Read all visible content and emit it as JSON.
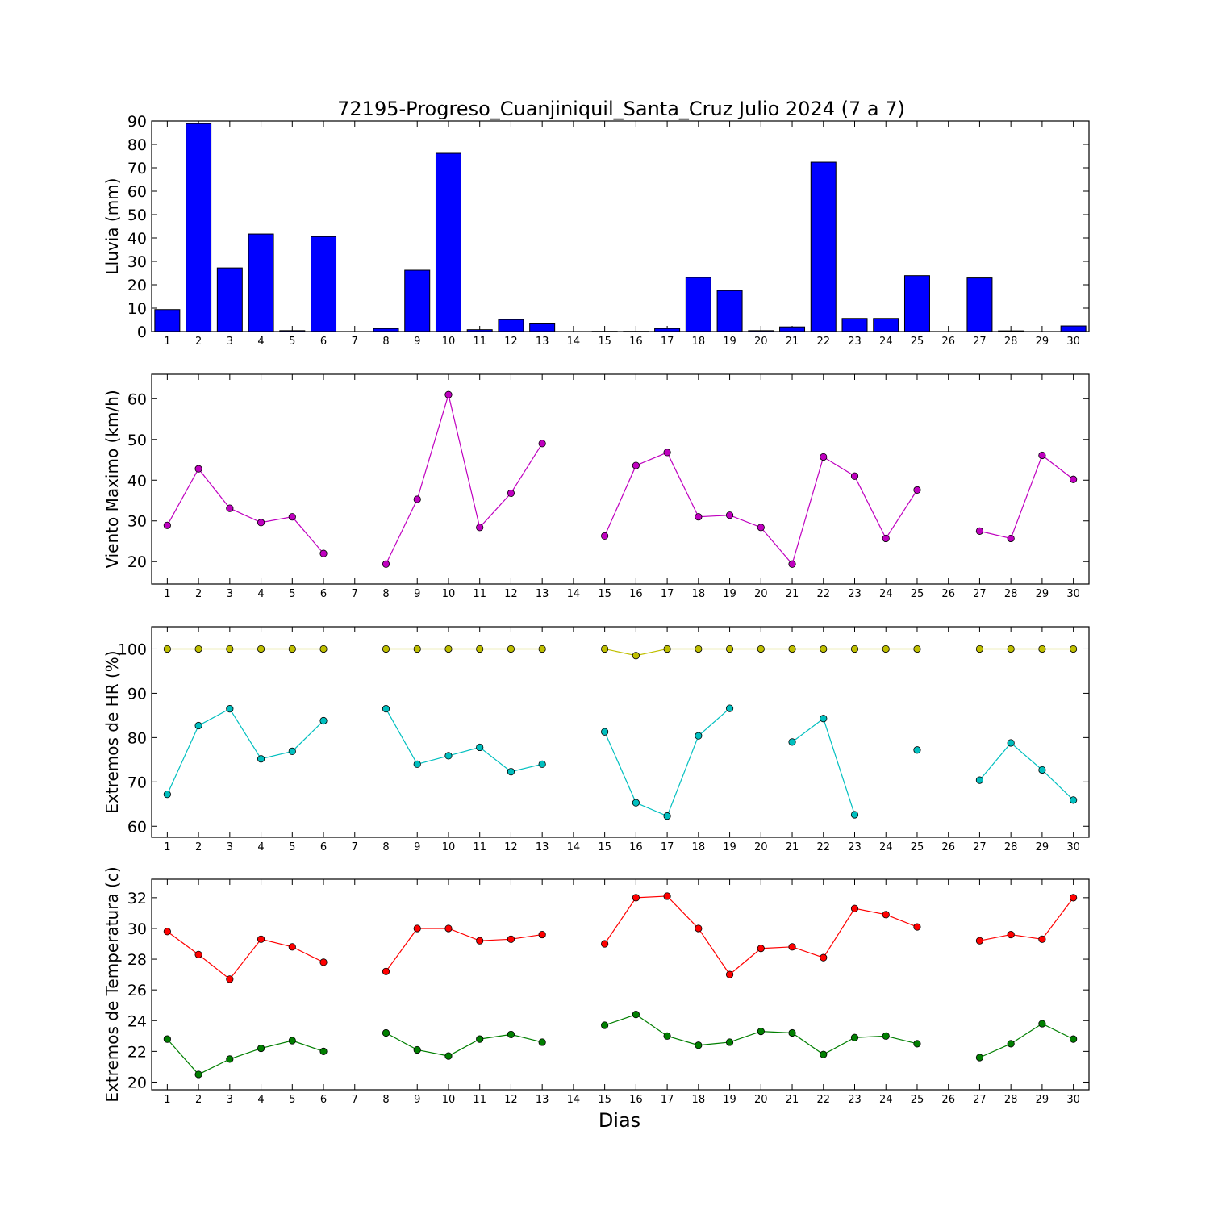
{
  "title": "72195-Progreso_Cuanjiniquil_Santa_Cruz Julio 2024  (7 a 7)",
  "xlabel": "Dias",
  "chart_data": [
    {
      "type": "bar",
      "ylabel": "Lluvia (mm)",
      "ylim": [
        0,
        90
      ],
      "yticks": [
        0,
        10,
        20,
        30,
        40,
        50,
        60,
        70,
        80,
        90
      ],
      "categories": [
        1,
        2,
        3,
        4,
        5,
        6,
        7,
        8,
        9,
        10,
        11,
        12,
        13,
        14,
        15,
        16,
        17,
        18,
        19,
        20,
        21,
        22,
        23,
        24,
        25,
        26,
        27,
        28,
        29,
        30
      ],
      "series": [
        {
          "color": "#0000ff",
          "values": [
            9.4,
            88.9,
            27.2,
            41.7,
            0.4,
            40.6,
            0,
            1.3,
            26.2,
            76.2,
            0.8,
            5.1,
            3.3,
            0,
            0.1,
            0.1,
            1.3,
            23.1,
            17.5,
            0.4,
            2.0,
            72.4,
            5.6,
            5.6,
            23.9,
            0,
            22.9,
            0.3,
            0,
            2.4
          ]
        }
      ]
    },
    {
      "type": "line",
      "ylabel": "Viento Maximo (km/h)",
      "ylim": [
        14.5,
        66
      ],
      "yticks": [
        20,
        30,
        40,
        50,
        60
      ],
      "x": [
        1,
        2,
        3,
        4,
        5,
        6,
        7,
        8,
        9,
        10,
        11,
        12,
        13,
        14,
        15,
        16,
        17,
        18,
        19,
        20,
        21,
        22,
        23,
        24,
        25,
        26,
        27,
        28,
        29,
        30
      ],
      "series": [
        {
          "color": "#bf00bf",
          "values": [
            28.9,
            42.8,
            33.1,
            29.6,
            31.0,
            22.0,
            null,
            19.4,
            35.3,
            61.0,
            28.4,
            36.8,
            49.0,
            null,
            26.3,
            43.6,
            46.8,
            31.0,
            31.4,
            28.4,
            19.4,
            45.7,
            41.0,
            25.7,
            37.6,
            null,
            27.5,
            25.7,
            46.1,
            40.2
          ]
        }
      ]
    },
    {
      "type": "line",
      "ylabel": "Extremos de HR (%)",
      "ylim": [
        57.5,
        105
      ],
      "yticks": [
        60,
        70,
        80,
        90,
        100
      ],
      "x": [
        1,
        2,
        3,
        4,
        5,
        6,
        7,
        8,
        9,
        10,
        11,
        12,
        13,
        14,
        15,
        16,
        17,
        18,
        19,
        20,
        21,
        22,
        23,
        24,
        25,
        26,
        27,
        28,
        29,
        30
      ],
      "series": [
        {
          "color": "#bfbf00",
          "values": [
            100,
            100,
            100,
            100,
            100,
            100,
            null,
            100,
            100,
            100,
            100,
            100,
            100,
            null,
            100,
            98.5,
            100,
            100,
            100,
            100,
            100,
            100,
            100,
            100,
            100,
            null,
            100,
            100,
            100,
            100
          ]
        },
        {
          "color": "#00bfbf",
          "values": [
            67.2,
            82.7,
            86.5,
            75.2,
            76.9,
            83.8,
            null,
            86.5,
            74.0,
            75.9,
            77.8,
            72.3,
            74.0,
            null,
            81.3,
            65.3,
            62.3,
            80.4,
            86.6,
            null,
            79.0,
            84.3,
            62.6,
            null,
            77.2,
            null,
            70.4,
            78.8,
            72.7,
            65.9
          ]
        }
      ]
    },
    {
      "type": "line",
      "ylabel": "Extremos de Temperatura (c)",
      "ylim": [
        19.5,
        33.2
      ],
      "yticks": [
        20,
        22,
        24,
        26,
        28,
        30,
        32
      ],
      "x": [
        1,
        2,
        3,
        4,
        5,
        6,
        7,
        8,
        9,
        10,
        11,
        12,
        13,
        14,
        15,
        16,
        17,
        18,
        19,
        20,
        21,
        22,
        23,
        24,
        25,
        26,
        27,
        28,
        29,
        30
      ],
      "series": [
        {
          "color": "#ff0000",
          "values": [
            29.8,
            28.3,
            26.7,
            29.3,
            28.8,
            27.8,
            null,
            27.2,
            30.0,
            30.0,
            29.2,
            29.3,
            29.6,
            null,
            29.0,
            32.0,
            32.1,
            30.0,
            27.0,
            28.7,
            28.8,
            28.1,
            31.3,
            30.9,
            30.1,
            null,
            29.2,
            29.6,
            29.3,
            32.0
          ]
        },
        {
          "color": "#007f00",
          "values": [
            22.8,
            20.5,
            21.5,
            22.2,
            22.7,
            22.0,
            null,
            23.2,
            22.1,
            21.7,
            22.8,
            23.1,
            22.6,
            null,
            23.7,
            24.4,
            23.0,
            22.4,
            22.6,
            23.3,
            23.2,
            21.8,
            22.9,
            23.0,
            22.5,
            null,
            21.6,
            22.5,
            23.8,
            22.8
          ]
        }
      ]
    }
  ]
}
